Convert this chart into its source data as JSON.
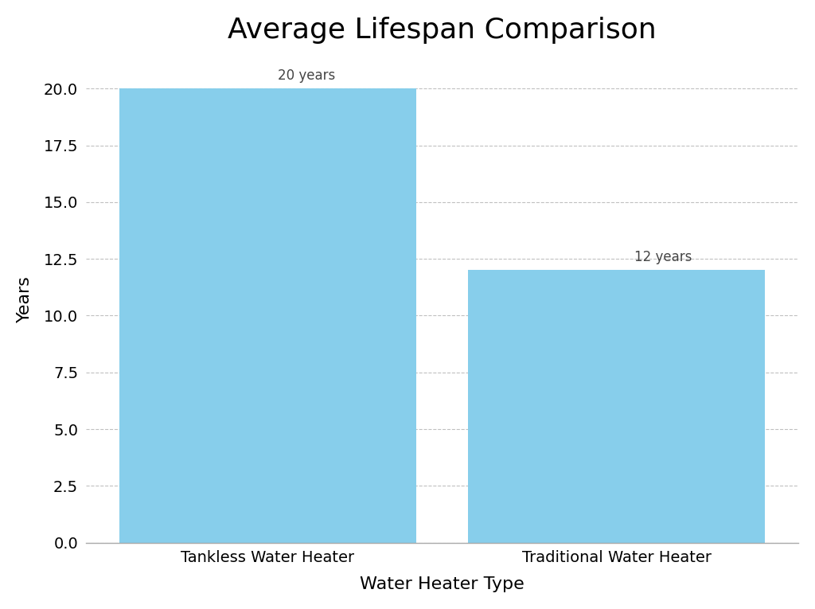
{
  "categories": [
    "Tankless Water Heater",
    "Traditional Water Heater"
  ],
  "values": [
    20,
    12
  ],
  "bar_color": "#87CEEB",
  "title": "Average Lifespan Comparison",
  "xlabel": "Water Heater Type",
  "ylabel": "Years",
  "ylim": [
    0,
    21.5
  ],
  "yticks": [
    0.0,
    2.5,
    5.0,
    7.5,
    10.0,
    12.5,
    15.0,
    17.5,
    20.0
  ],
  "annotations": [
    "20 years",
    "12 years"
  ],
  "title_fontsize": 26,
  "axis_label_fontsize": 16,
  "tick_fontsize": 14,
  "annotation_fontsize": 12,
  "bar_width": 0.85,
  "x_positions": [
    0,
    1
  ],
  "xlim": [
    -0.52,
    1.52
  ],
  "background_color": "#ffffff",
  "grid_color": "#c0c0c0",
  "grid_style": "--",
  "spine_color": "#aaaaaa"
}
